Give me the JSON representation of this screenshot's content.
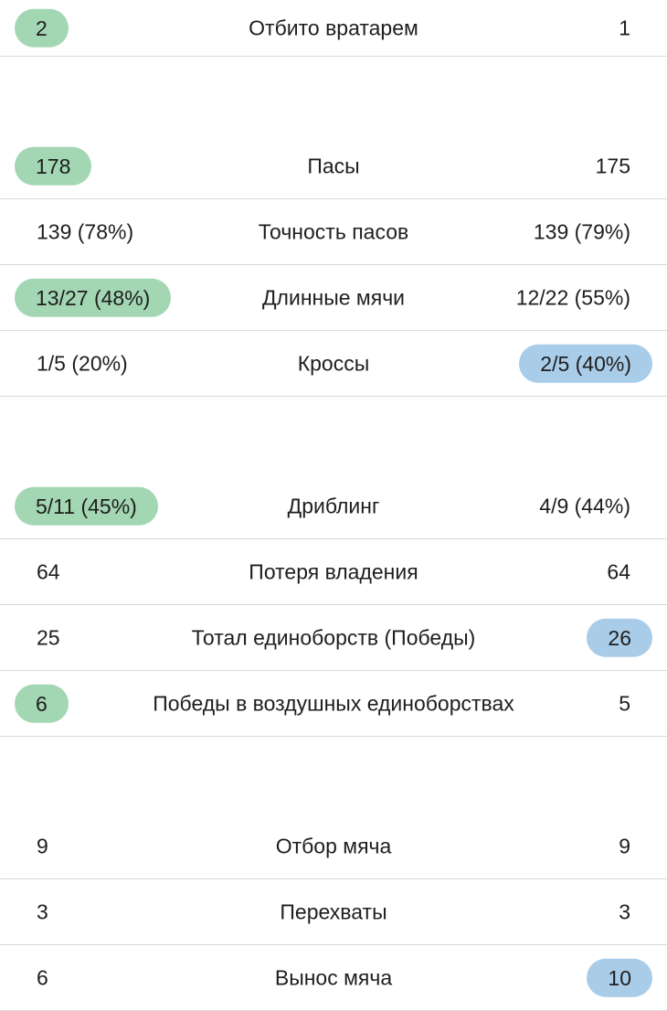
{
  "stats": {
    "colors": {
      "home_highlight": "#a3d7b3",
      "away_highlight": "#a9cce9"
    },
    "sections": [
      {
        "rows": [
          {
            "home": "2",
            "label": "Отбито вратарем",
            "away": "1",
            "home_pill": true,
            "away_pill": false
          }
        ]
      },
      {
        "rows": [
          {
            "home": "178",
            "label": "Пасы",
            "away": "175",
            "home_pill": true,
            "away_pill": false
          },
          {
            "home": "139 (78%)",
            "label": "Точность пасов",
            "away": "139 (79%)",
            "home_pill": false,
            "away_pill": false
          },
          {
            "home": "13/27 (48%)",
            "label": "Длинные мячи",
            "away": "12/22 (55%)",
            "home_pill": true,
            "away_pill": false
          },
          {
            "home": "1/5 (20%)",
            "label": "Кроссы",
            "away": "2/5 (40%)",
            "home_pill": false,
            "away_pill": true
          }
        ]
      },
      {
        "rows": [
          {
            "home": "5/11 (45%)",
            "label": "Дриблинг",
            "away": "4/9 (44%)",
            "home_pill": true,
            "away_pill": false
          },
          {
            "home": "64",
            "label": "Потеря владения",
            "away": "64",
            "home_pill": false,
            "away_pill": false
          },
          {
            "home": "25",
            "label": "Тотал единоборств (Победы)",
            "away": "26",
            "home_pill": false,
            "away_pill": true
          },
          {
            "home": "6",
            "label": "Победы в воздушных единоборствах",
            "away": "5",
            "home_pill": true,
            "away_pill": false
          }
        ]
      },
      {
        "rows": [
          {
            "home": "9",
            "label": "Отбор мяча",
            "away": "9",
            "home_pill": false,
            "away_pill": false
          },
          {
            "home": "3",
            "label": "Перехваты",
            "away": "3",
            "home_pill": false,
            "away_pill": false
          },
          {
            "home": "6",
            "label": "Вынос мяча",
            "away": "10",
            "home_pill": false,
            "away_pill": true
          }
        ]
      }
    ]
  }
}
